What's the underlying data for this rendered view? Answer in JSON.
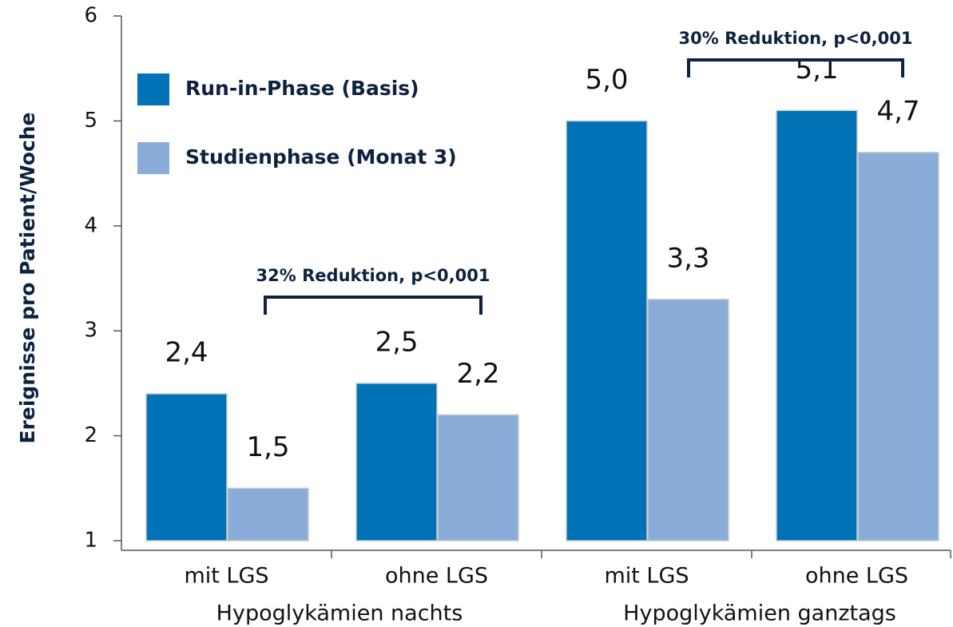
{
  "chart_data": {
    "type": "bar",
    "y_axis_label": "Ereignisse pro Patient/Woche",
    "categories": [
      "mit LGS",
      "ohne LGS",
      "mit LGS",
      "ohne LGS"
    ],
    "group_labels": [
      "Hypoglykämien nachts",
      "Hypoglykämien ganztags"
    ],
    "series": [
      {
        "name": "Run-in-Phase (Basis)",
        "color": "#0072b5",
        "values": [
          2.4,
          2.5,
          5.0,
          5.1
        ],
        "value_labels": [
          "2,4",
          "2,5",
          "5,0",
          "5,1"
        ]
      },
      {
        "name": "Studienphase (Monat 3)",
        "color": "#89add8",
        "values": [
          1.5,
          2.2,
          3.3,
          4.7
        ],
        "value_labels": [
          "1,5",
          "2,2",
          "3,3",
          "4,7"
        ]
      }
    ],
    "annotations": [
      "32% Reduktion, p<0,001",
      "30% Reduktion, p<0,001"
    ],
    "ylim": [
      1,
      6
    ],
    "yticks": [
      1,
      2,
      3,
      4,
      5,
      6
    ],
    "legend": "upper left"
  }
}
